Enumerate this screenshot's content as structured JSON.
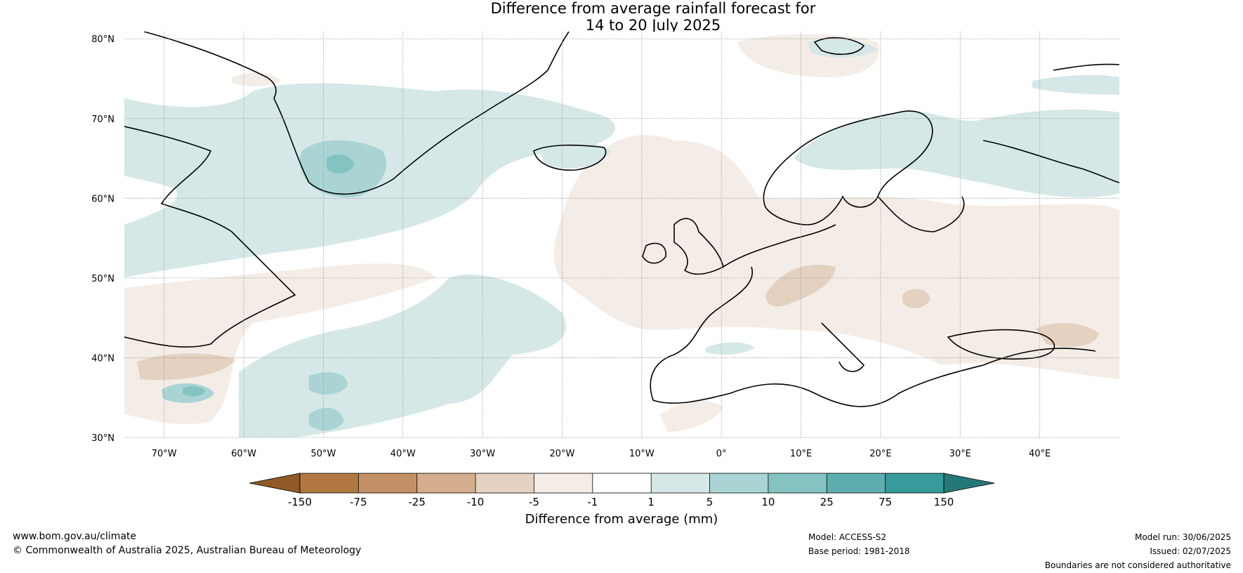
{
  "title": {
    "line1": "Difference from average rainfall forecast for",
    "line2": "14 to 20 July 2025"
  },
  "map": {
    "lat_labels": [
      "80°N",
      "70°N",
      "60°N",
      "50°N",
      "40°N",
      "30°N"
    ],
    "lon_labels": [
      "70°W",
      "60°W",
      "50°W",
      "40°W",
      "30°W",
      "20°W",
      "10°W",
      "0°",
      "10°E",
      "20°E",
      "30°E",
      "40°E"
    ],
    "colors": {
      "ocean_neutral": "#ffffff",
      "dry_light": "#f4ede7",
      "dry_mid": "#e4d1c0",
      "wet_light": "#d5e8e7",
      "wet_mid": "#a9d4d3",
      "wet_strong": "#84c3c2",
      "coast": "#000000",
      "border": "#808080"
    }
  },
  "colorbar": {
    "ticks": [
      "-150",
      "-75",
      "-25",
      "-10",
      "-5",
      "-1",
      "1",
      "5",
      "10",
      "25",
      "75",
      "150"
    ],
    "colors": [
      "#8f5a25",
      "#b07840",
      "#c39066",
      "#d3ad8d",
      "#e5d1c0",
      "#f4ede7",
      "#ffffff",
      "#d5e8e7",
      "#a9d4d3",
      "#84c3c2",
      "#5eaeaf",
      "#369b9a",
      "#267878"
    ],
    "label": "Difference from average (mm)"
  },
  "footer": {
    "website": "www.bom.gov.au/climate",
    "copyright": "© Commonwealth of Australia 2025, Australian Bureau of Meteorology",
    "model": "Model: ACCESS-S2",
    "base_period": "Base period: 1981-2018",
    "model_run": "Model run: 30/06/2025",
    "issued": "Issued: 02/07/2025",
    "disclaimer": "Boundaries are not considered authoritative"
  }
}
